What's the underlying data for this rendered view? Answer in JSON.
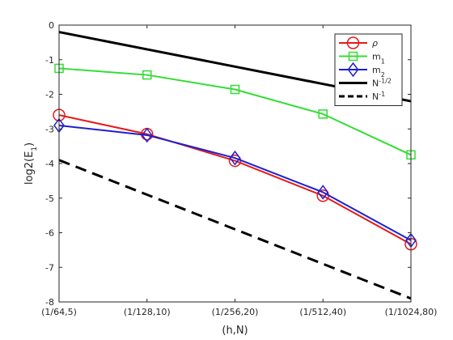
{
  "chart_data": {
    "type": "line",
    "xlabel": "(h,N)",
    "ylabel": "log2(E",
    "ylabel_sub": "1",
    "ylabel_end": ")",
    "categories": [
      "(1/64,5)",
      "(1/128,10)",
      "(1/256,20)",
      "(1/512,40)",
      "(1/1024,80)"
    ],
    "ylim": [
      -8,
      0
    ],
    "yticks": [
      0,
      -1,
      -2,
      -3,
      -4,
      -5,
      -6,
      -7,
      -8
    ],
    "grid": false,
    "legend_position": "top-right",
    "series": [
      {
        "name": "ρ",
        "name_main": "ρ",
        "name_sub": "",
        "name_sup": "",
        "color": "#e41a1c",
        "marker": "circle",
        "dash": "solid",
        "values": [
          -2.6,
          -3.15,
          -3.92,
          -4.93,
          -6.33
        ]
      },
      {
        "name": "m1",
        "name_main": "m",
        "name_sub": "1",
        "name_sup": "",
        "color": "#33dd33",
        "marker": "square",
        "dash": "solid",
        "values": [
          -1.25,
          -1.44,
          -1.86,
          -2.57,
          -3.75
        ]
      },
      {
        "name": "m2",
        "name_main": "m",
        "name_sub": "2",
        "name_sup": "",
        "color": "#1f1fcc",
        "marker": "diamond",
        "dash": "solid",
        "values": [
          -2.9,
          -3.18,
          -3.84,
          -4.83,
          -6.22
        ]
      },
      {
        "name": "N-1/2",
        "name_main": "N",
        "name_sub": "",
        "name_sup": "-1/2",
        "color": "#000000",
        "marker": "none",
        "dash": "solid",
        "values": [
          -0.2,
          -0.7,
          -1.2,
          -1.7,
          -2.2
        ]
      },
      {
        "name": "N-1",
        "name_main": "N",
        "name_sub": "",
        "name_sup": "-1",
        "color": "#000000",
        "marker": "none",
        "dash": "dashed",
        "values": [
          -3.9,
          -4.9,
          -5.9,
          -6.9,
          -7.9
        ]
      }
    ]
  }
}
